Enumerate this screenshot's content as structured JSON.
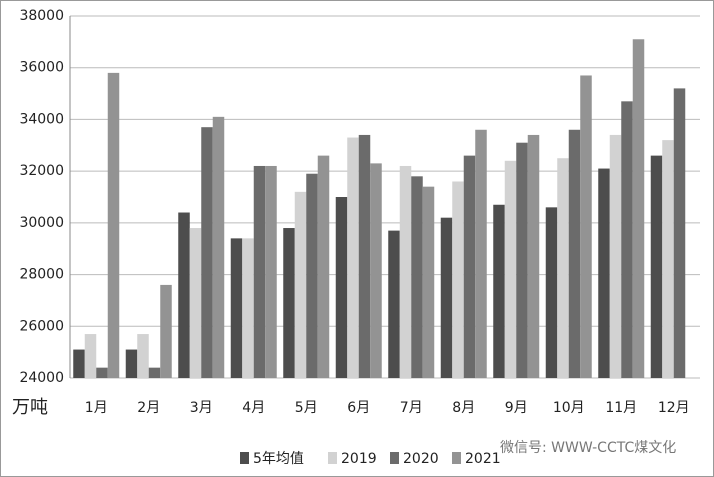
{
  "chart_data": {
    "type": "bar",
    "y_unit": "万吨",
    "categories": [
      "1月",
      "2月",
      "3月",
      "4月",
      "5月",
      "6月",
      "7月",
      "8月",
      "9月",
      "10月",
      "11月",
      "12月"
    ],
    "series": [
      {
        "name": "5年均值",
        "color": "#4d4d4d",
        "values": [
          25100,
          25100,
          30400,
          29400,
          29800,
          31000,
          29700,
          30200,
          30700,
          30600,
          32100,
          32600
        ]
      },
      {
        "name": "2019",
        "color": "#d2d2d2",
        "values": [
          25700,
          25700,
          29800,
          29400,
          31200,
          33300,
          32200,
          31600,
          32400,
          32500,
          33400,
          33200
        ]
      },
      {
        "name": "2020",
        "color": "#6b6b6b",
        "values": [
          24400,
          24400,
          33700,
          32200,
          31900,
          33400,
          31800,
          32600,
          33100,
          33600,
          34700,
          35200
        ]
      },
      {
        "name": "2021",
        "color": "#939393",
        "values": [
          35800,
          27600,
          34100,
          32200,
          32600,
          32300,
          31400,
          33600,
          33400,
          35700,
          37100,
          null
        ]
      }
    ],
    "ylim": [
      24000,
      38000
    ],
    "yticks": [
      24000,
      26000,
      28000,
      30000,
      32000,
      34000,
      36000,
      38000
    ],
    "grid": true,
    "legend": "bottom",
    "watermark": "微信号: WWW-CCTC煤文化"
  }
}
